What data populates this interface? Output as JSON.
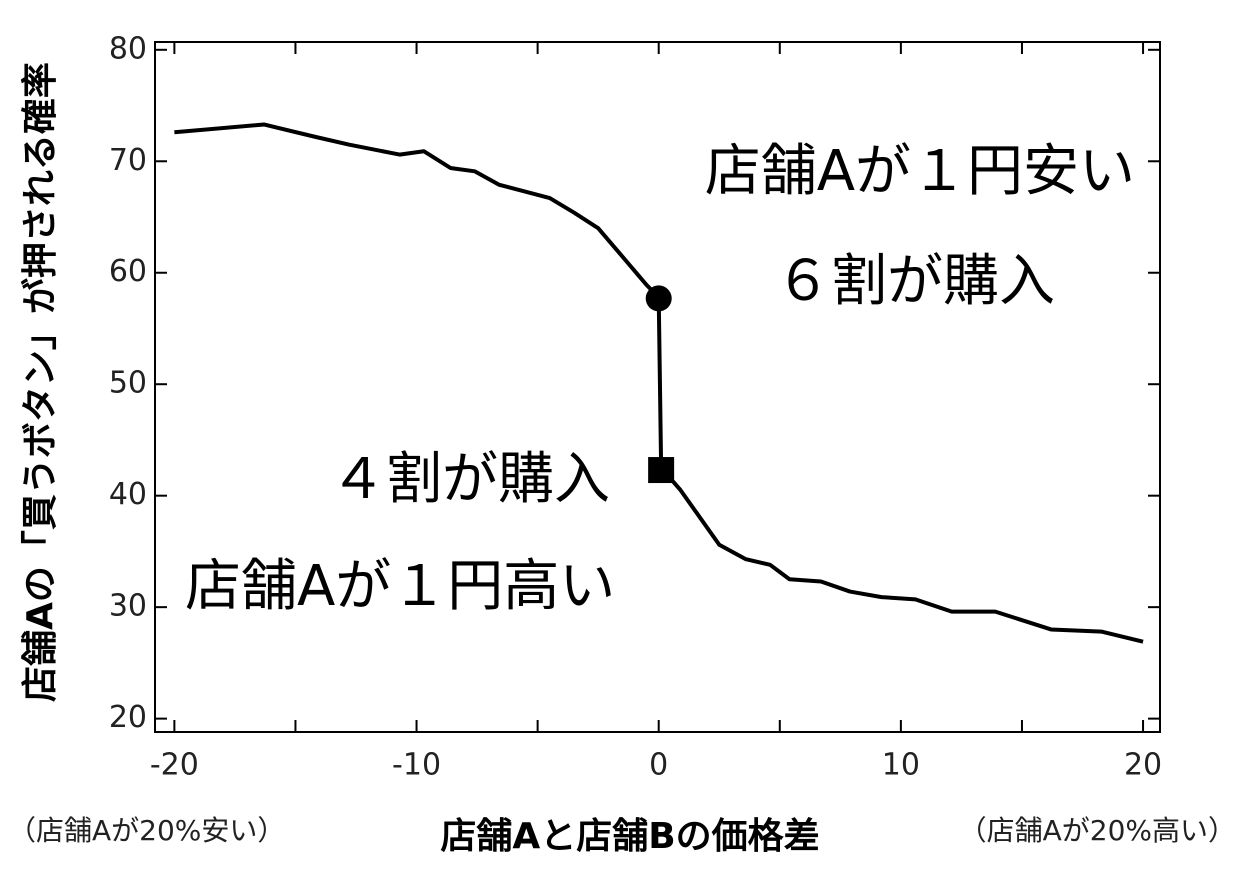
{
  "chart_data": {
    "type": "line",
    "y_label": "店舗Aの「買うボタン」が押される確率",
    "x_label": "店舗Aと店舗Bの価格差",
    "x_left_note": "（店舗Aが20%安い）",
    "x_right_note": "（店舗Aが20%高い）",
    "xlim": [
      -20.8,
      20.7
    ],
    "ylim": [
      18.8,
      80.7
    ],
    "xticks": [
      -20,
      -10,
      0,
      10,
      20
    ],
    "xminorticks": [
      -15,
      -5,
      5,
      15
    ],
    "yticks": [
      20,
      30,
      40,
      50,
      60,
      70,
      80
    ],
    "series": [
      {
        "color": "#000000",
        "x": [
          -20,
          -16.3,
          -14.2,
          -12.8,
          -10.7,
          -9.7,
          -8.6,
          -7.6,
          -6.6,
          -4.5,
          -3.5,
          -2.5,
          -1.4,
          -0.5,
          0,
          0.1,
          0.9,
          2.5,
          3.6,
          4.6,
          5.4,
          6.7,
          7.9,
          9.2,
          10.6,
          12.1,
          13.9,
          16.2,
          18.3,
          20
        ],
        "values": [
          72.6,
          73.3,
          72.2,
          71.5,
          70.6,
          70.9,
          69.4,
          69.1,
          67.9,
          66.7,
          65.4,
          64.0,
          61.2,
          58.9,
          57.8,
          42.5,
          40.5,
          35.6,
          34.3,
          33.8,
          32.5,
          32.3,
          31.4,
          30.9,
          30.7,
          29.6,
          29.6,
          28.0,
          27.8,
          26.9
        ]
      }
    ],
    "markers": [
      {
        "shape": "circle",
        "x": 0,
        "y": 57.7
      },
      {
        "shape": "square",
        "x": 0.1,
        "y": 42.3
      }
    ],
    "annotations": [
      "店舗Aが１円安い",
      "６割が購入",
      "４割が購入",
      "店舗Aが１円高い"
    ]
  }
}
